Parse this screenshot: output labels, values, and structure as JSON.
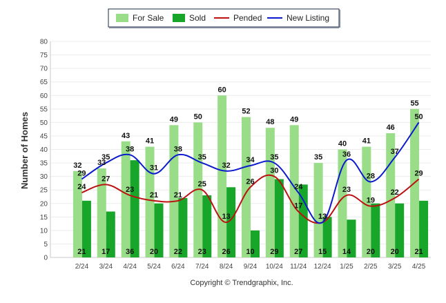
{
  "chart_data": {
    "type": "bar",
    "title": "",
    "xlabel": "",
    "ylabel": "Number of Homes",
    "ylim": [
      0,
      80
    ],
    "y_ticks": [
      0,
      5,
      10,
      15,
      20,
      25,
      30,
      35,
      40,
      45,
      50,
      55,
      60,
      65,
      70,
      75,
      80
    ],
    "grid": true,
    "legend_position": "top-center",
    "categories": [
      "2/24",
      "3/24",
      "4/24",
      "5/24",
      "6/24",
      "7/24",
      "8/24",
      "9/24",
      "10/24",
      "11/24",
      "12/24",
      "1/25",
      "2/25",
      "3/25",
      "4/25"
    ],
    "series": [
      {
        "name": "For Sale",
        "kind": "bar",
        "color": "#99dd88",
        "values": [
          32,
          33,
          43,
          41,
          49,
          50,
          60,
          52,
          48,
          49,
          35,
          40,
          41,
          46,
          55
        ]
      },
      {
        "name": "Sold",
        "kind": "bar",
        "color": "#18a62a",
        "values": [
          21,
          17,
          36,
          20,
          22,
          23,
          26,
          10,
          29,
          27,
          15,
          14,
          20,
          20,
          21
        ]
      },
      {
        "name": "Pended",
        "kind": "line",
        "color": "#bb1111",
        "values": [
          24,
          27,
          23,
          21,
          21,
          25,
          13,
          26,
          30,
          17,
          13,
          23,
          19,
          22,
          29
        ]
      },
      {
        "name": "New Listing",
        "kind": "line",
        "color": "#0a1acc",
        "values": [
          29,
          35,
          38,
          31,
          38,
          35,
          32,
          34,
          35,
          24,
          13,
          36,
          28,
          37,
          50
        ]
      }
    ]
  },
  "footer": {
    "copyright": "Copyright © Trendgraphix, Inc."
  }
}
